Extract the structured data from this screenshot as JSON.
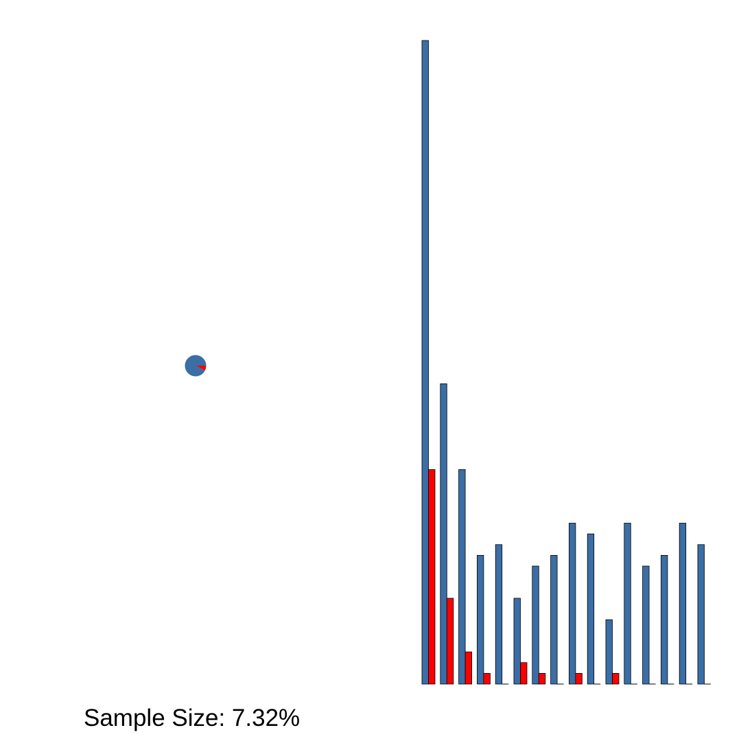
{
  "colors": {
    "population": "#3a6ea5",
    "sample": "#ff0000",
    "outline": "#000000",
    "background": "#ffffff"
  },
  "caption": {
    "label": "Sample Size: 7.32%"
  },
  "chart_data": [
    {
      "type": "pie",
      "slices": [
        {
          "name": "",
          "value": 92.68,
          "color": "#3a6ea5"
        },
        {
          "name": "",
          "value": 7.32,
          "color": "#ff0000"
        }
      ]
    },
    {
      "type": "bar",
      "categories": [
        "",
        "",
        "",
        "",
        "",
        "",
        "",
        "",
        "",
        "",
        "",
        "",
        "",
        "",
        "",
        ""
      ],
      "series": [
        {
          "values": [
            60,
            28,
            20,
            12,
            13,
            8,
            11,
            12,
            15,
            14,
            6,
            15,
            11,
            12,
            15,
            13
          ],
          "color": "#3a6ea5"
        },
        {
          "values": [
            20,
            8,
            3,
            1,
            0,
            2,
            1,
            0,
            1,
            0,
            1,
            0,
            0,
            0,
            0,
            0
          ],
          "color": "#ff0000"
        }
      ],
      "ylim": [
        0,
        60
      ],
      "grid": false,
      "axes": false
    }
  ]
}
